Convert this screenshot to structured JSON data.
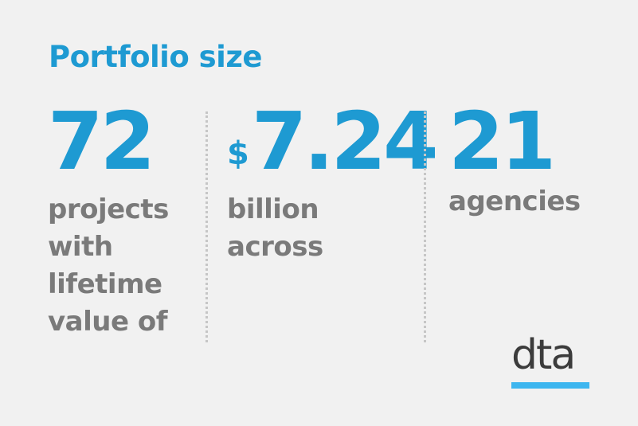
{
  "title": "Portfolio size",
  "stats": [
    {
      "value": "72",
      "description_lines": [
        "projects",
        "with",
        "lifetime",
        "value of"
      ]
    },
    {
      "currency": "$",
      "value": "7.24",
      "description_lines": [
        "billion",
        "across"
      ]
    },
    {
      "value": "21",
      "description_lines": [
        "agencies"
      ]
    }
  ],
  "logo": {
    "text": "dta"
  },
  "colors": {
    "accent": "#1e9ad2",
    "text_grey": "#7a7a7a",
    "background": "#f1f1f1",
    "logo_bar": "#3eb6ef",
    "logo_text": "#3c3c3c"
  }
}
